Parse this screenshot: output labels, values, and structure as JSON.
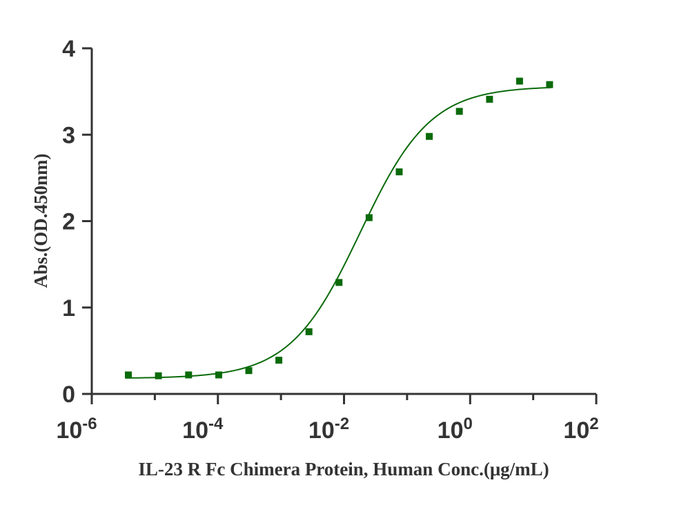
{
  "chart_data": {
    "type": "scatter",
    "title": "",
    "xlabel": "IL-23 R Fc Chimera Protein, Human Conc.(μg/mL)",
    "ylabel": "Abs.(OD.450nm)",
    "x_scale": "log10",
    "xlim": [
      1e-06,
      100
    ],
    "ylim": [
      0,
      4
    ],
    "grid": false,
    "legend": "none",
    "color": "#0a6a0a",
    "x_ticks": [
      {
        "base": "10",
        "exp": "-6"
      },
      {
        "base": "10",
        "exp": "-4"
      },
      {
        "base": "10",
        "exp": "-2"
      },
      {
        "base": "10",
        "exp": "0"
      },
      {
        "base": "10",
        "exp": "2"
      }
    ],
    "x_tick_values": [
      1e-06,
      0.0001,
      0.01,
      1,
      100
    ],
    "y_ticks": [
      "0",
      "1",
      "2",
      "3",
      "4"
    ],
    "y_tick_values": [
      0,
      1,
      2,
      3,
      4
    ],
    "series": [
      {
        "points": [
          {
            "x": 3.8e-06,
            "y": 0.22
          },
          {
            "x": 1.14e-05,
            "y": 0.21
          },
          {
            "x": 3.43e-05,
            "y": 0.22
          },
          {
            "x": 0.000103,
            "y": 0.22
          },
          {
            "x": 0.000309,
            "y": 0.27
          },
          {
            "x": 0.000926,
            "y": 0.39
          },
          {
            "x": 0.00278,
            "y": 0.72
          },
          {
            "x": 0.00833,
            "y": 1.29
          },
          {
            "x": 0.025,
            "y": 2.04
          },
          {
            "x": 0.075,
            "y": 2.57
          },
          {
            "x": 0.225,
            "y": 2.98
          },
          {
            "x": 0.675,
            "y": 3.27
          },
          {
            "x": 2.03,
            "y": 3.41
          },
          {
            "x": 6.08,
            "y": 3.62
          },
          {
            "x": 18.2,
            "y": 3.58
          }
        ]
      }
    ],
    "fit": {
      "model": "4PL",
      "bottom": 0.18,
      "top": 3.56,
      "ec50": 0.0181,
      "hill": 0.78
    }
  }
}
